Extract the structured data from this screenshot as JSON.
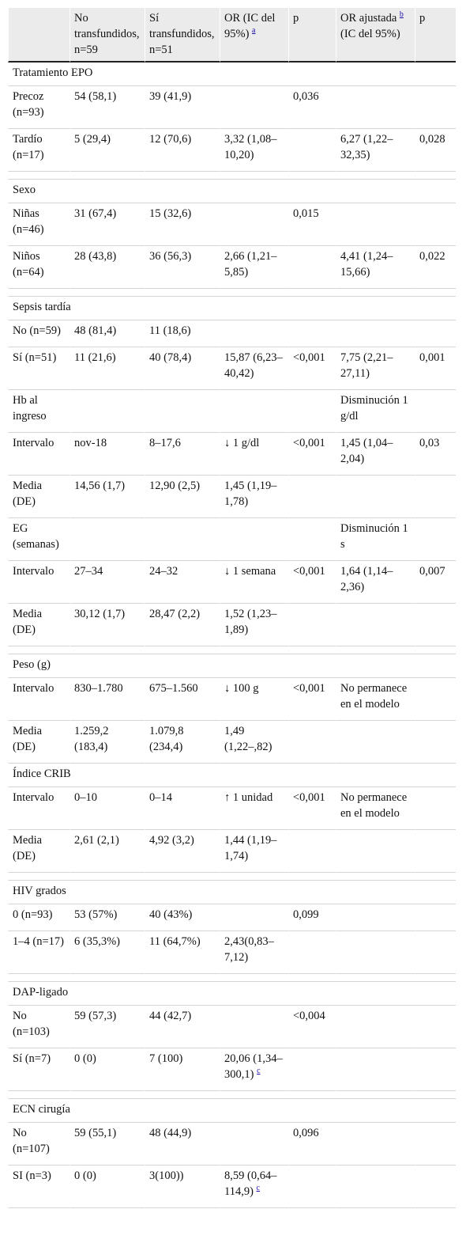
{
  "headers": [
    {
      "text": "No transfundidos, n=59",
      "sup": ""
    },
    {
      "text": "Sí transfundidos, n=51",
      "sup": ""
    },
    {
      "text": "OR (IC del 95%)",
      "sup": "a"
    },
    {
      "text": "p",
      "sup": ""
    },
    {
      "text": "OR ajustada",
      "sup": "b",
      "after": "(IC del 95%)"
    },
    {
      "text": "p",
      "sup": ""
    }
  ],
  "sections": [
    {
      "title": "Tratamiento EPO",
      "gap_before": false,
      "rows": [
        {
          "cells": [
            "Precoz (n=93)",
            "54 (58,1)",
            "39 (41,9)",
            "",
            "0,036",
            "",
            ""
          ]
        },
        {
          "cells": [
            "Tardío (n=17)",
            "5 (29,4)",
            "12 (70,6)",
            "3,32 (1,08–10,20)",
            "",
            "6,27 (1,22–32,35)",
            "0,028"
          ]
        }
      ]
    },
    {
      "title": "Sexo",
      "gap_before": true,
      "rows": [
        {
          "cells": [
            "Niñas (n=46)",
            "31 (67,4)",
            "15 (32,6)",
            "",
            "0,015",
            "",
            ""
          ]
        },
        {
          "cells": [
            "Niños (n=64)",
            "28 (43,8)",
            "36 (56,3)",
            "2,66 (1,21–5,85)",
            "",
            "4,41 (1,24–15,66)",
            "0,022"
          ]
        }
      ]
    },
    {
      "title": "Sepsis tardía",
      "gap_before": true,
      "rows": [
        {
          "cells": [
            "No (n=59)",
            "48 (81,4)",
            "11 (18,6)",
            "",
            "",
            "",
            ""
          ]
        },
        {
          "cells": [
            "Sí (n=51)",
            "11 (21,6)",
            "40 (78,4)",
            "15,87 (6,23–40,42)",
            "<0,001",
            "7,75 (2,21–27,11)",
            "0,001"
          ]
        },
        {
          "cells": [
            "Hb al ingreso",
            "",
            "",
            "",
            "",
            "Disminución 1 g/dl",
            ""
          ]
        },
        {
          "cells": [
            "Intervalo",
            "nov-18",
            "8–17,6",
            "↓ 1 g/dl",
            "<0,001",
            "1,45 (1,04–2,04)",
            "0,03"
          ]
        },
        {
          "cells": [
            "Media (DE)",
            "14,56 (1,7)",
            "12,90 (2,5)",
            "1,45 (1,19–1,78)",
            "",
            "",
            ""
          ]
        },
        {
          "cells": [
            "EG (semanas)",
            "",
            "",
            "",
            "",
            "Disminución 1 s",
            ""
          ]
        },
        {
          "cells": [
            "Intervalo",
            "27–34",
            "24–32",
            "↓ 1 semana",
            "<0,001",
            "1,64 (1,14–2,36)",
            "0,007"
          ]
        },
        {
          "cells": [
            "Media (DE)",
            "30,12 (1,7)",
            "28,47 (2,2)",
            "1,52 (1,23–1,89)",
            "",
            "",
            ""
          ]
        }
      ]
    },
    {
      "title": "Peso (g)",
      "gap_before": true,
      "rows": [
        {
          "cells": [
            "Intervalo",
            "830–1.780",
            "675–1.560",
            "↓ 100 g",
            "<0,001",
            "No permanece en el modelo",
            ""
          ]
        },
        {
          "cells": [
            "Media (DE)",
            "1.259,2 (183,4)",
            "1.079,8 (234,4)",
            "1,49 (1,22–,82)",
            "",
            "",
            ""
          ]
        }
      ]
    },
    {
      "title": "Índice CRIB",
      "gap_before": false,
      "rows": [
        {
          "cells": [
            "Intervalo",
            "0–10",
            "0–14",
            "↑ 1 unidad",
            "<0,001",
            "No permanece en el modelo",
            ""
          ]
        },
        {
          "cells": [
            "Media (DE)",
            "2,61 (2,1)",
            "4,92 (3,2)",
            "1,44 (1,19–1,74)",
            "",
            "",
            ""
          ]
        }
      ]
    },
    {
      "title": "HIV grados",
      "gap_before": true,
      "rows": [
        {
          "cells": [
            "0 (n=93)",
            "53 (57%)",
            "40 (43%)",
            "",
            "0,099",
            "",
            ""
          ]
        },
        {
          "cells": [
            "1–4 (n=17)",
            "6 (35,3%)",
            "11 (64,7%)",
            "2,43(0,83–7,12)",
            "",
            "",
            ""
          ]
        }
      ]
    },
    {
      "title": "DAP-ligado",
      "gap_before": true,
      "rows": [
        {
          "cells": [
            "No (n=103)",
            "59 (57,3)",
            "44 (42,7)",
            "",
            "<0,004",
            "",
            ""
          ]
        },
        {
          "cells": [
            "Sí (n=7)",
            "0 (0)",
            "7 (100)",
            "20,06 (1,34–300,1)",
            "",
            "",
            ""
          ],
          "sup3": "c"
        }
      ]
    },
    {
      "title": "ECN cirugía",
      "gap_before": true,
      "rows": [
        {
          "cells": [
            "No (n=107)",
            "59 (55,1)",
            "48 (44,9)",
            "",
            "0,096",
            "",
            ""
          ]
        },
        {
          "cells": [
            "SI (n=3)",
            "0 (0)",
            "3(100))",
            "8,59 (0,64–114,9)",
            "",
            "",
            ""
          ],
          "sup3": "c"
        }
      ]
    }
  ]
}
